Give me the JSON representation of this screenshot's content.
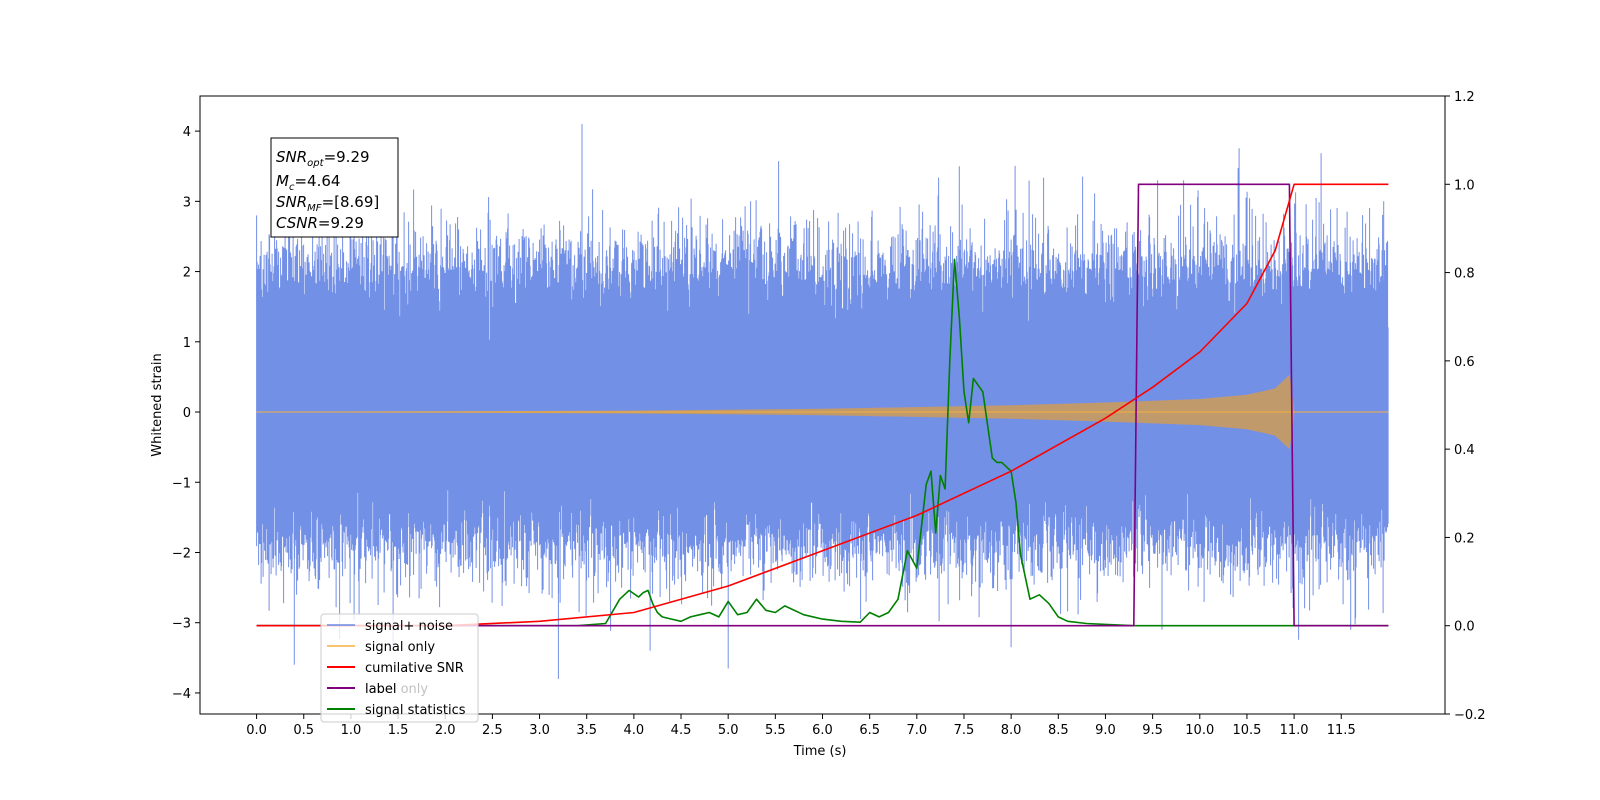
{
  "chart_data": {
    "type": "line",
    "xlabel": "Time (s)",
    "ylabel_left": "Whitened strain",
    "ylabel_right": "",
    "xlim": [
      -0.6,
      12.6
    ],
    "ylim_left": [
      -4.3,
      4.5
    ],
    "ylim_right": [
      -0.2,
      1.2
    ],
    "x_ticks": [
      0.0,
      0.5,
      1.0,
      1.5,
      2.0,
      2.5,
      3.0,
      3.5,
      4.0,
      4.5,
      5.0,
      5.5,
      6.0,
      6.5,
      7.0,
      7.5,
      8.0,
      8.5,
      9.0,
      9.5,
      10.0,
      10.5,
      11.0,
      11.5
    ],
    "x_tick_labels": [
      "0.0",
      "0.5",
      "1.0",
      "1.5",
      "2.0",
      "2.5",
      "3.0",
      "3.5",
      "4.0",
      "4.5",
      "5.0",
      "5.5",
      "6.0",
      "6.5",
      "7.0",
      "7.5",
      "8.0",
      "8.5",
      "9.0",
      "9.5",
      "10.0",
      "10.5",
      "11.0",
      "11.5"
    ],
    "y_left_ticks": [
      -4,
      -3,
      -2,
      -1,
      0,
      1,
      2,
      3,
      4
    ],
    "y_left_tick_labels": [
      "−4",
      "−3",
      "−2",
      "−1",
      "0",
      "1",
      "2",
      "3",
      "4"
    ],
    "y_right_ticks": [
      -0.2,
      0.0,
      0.2,
      0.4,
      0.6,
      0.8,
      1.0,
      1.2
    ],
    "y_right_tick_labels": [
      "−0.2",
      "0.0",
      "0.2",
      "0.4",
      "0.6",
      "0.8",
      "1.0",
      "1.2"
    ],
    "grid": false,
    "legend_position": "lower-left",
    "colors": {
      "signal_noise": "#6b8ae6",
      "signal_only": "#f5b041",
      "signal_only_fill": "#c19a6b",
      "cumulative_snr": "#ff0000",
      "label": "#800080",
      "signal_statistics": "#008000"
    },
    "series": [
      {
        "name": "signal+ noise",
        "axis": "left",
        "description_style": "dense noise band",
        "x_range": [
          0.0,
          12.0
        ],
        "band_envelope": {
          "typical_low": -1.8,
          "typical_high": 2.0,
          "extreme_min": -3.8,
          "extreme_max": 4.1
        }
      },
      {
        "name": "signal only",
        "axis": "left",
        "x_range": [
          0.0,
          12.0
        ],
        "chirp_envelope": {
          "x": [
            0.0,
            2.0,
            4.0,
            6.0,
            8.0,
            9.0,
            10.0,
            10.5,
            10.8,
            10.95,
            11.0,
            12.0
          ],
          "amp": [
            0.0,
            0.005,
            0.015,
            0.04,
            0.09,
            0.13,
            0.18,
            0.24,
            0.33,
            0.52,
            0.0,
            0.0
          ]
        }
      },
      {
        "name": "cumilative SNR",
        "axis": "right",
        "x": [
          0.0,
          2.0,
          3.0,
          4.0,
          5.0,
          6.0,
          7.0,
          8.0,
          9.0,
          9.5,
          10.0,
          10.5,
          10.8,
          11.0,
          11.1,
          12.0
        ],
        "y": [
          0.0,
          0.0,
          0.01,
          0.03,
          0.09,
          0.17,
          0.25,
          0.35,
          0.47,
          0.54,
          0.62,
          0.73,
          0.85,
          1.0,
          1.0,
          1.0
        ]
      },
      {
        "name": "label",
        "axis": "right",
        "x": [
          0.0,
          9.3,
          9.35,
          10.95,
          11.0,
          12.0
        ],
        "y": [
          0.0,
          0.0,
          1.0,
          1.0,
          0.0,
          0.0
        ]
      },
      {
        "name": "label only",
        "axis": "right",
        "x": [],
        "y": []
      },
      {
        "name": "signal statistics",
        "axis": "right",
        "x": [
          0.0,
          3.4,
          3.7,
          3.85,
          3.95,
          4.05,
          4.1,
          4.15,
          4.2,
          4.25,
          4.3,
          4.4,
          4.5,
          4.6,
          4.7,
          4.8,
          4.9,
          5.0,
          5.1,
          5.2,
          5.3,
          5.4,
          5.5,
          5.6,
          5.8,
          6.0,
          6.2,
          6.4,
          6.5,
          6.6,
          6.7,
          6.8,
          6.9,
          7.0,
          7.1,
          7.15,
          7.2,
          7.25,
          7.3,
          7.35,
          7.4,
          7.45,
          7.5,
          7.55,
          7.6,
          7.7,
          7.8,
          7.85,
          7.9,
          8.0,
          8.05,
          8.1,
          8.2,
          8.3,
          8.4,
          8.5,
          8.6,
          8.8,
          9.0,
          9.3,
          9.4,
          12.0
        ],
        "y": [
          0.0,
          0.0,
          0.005,
          0.06,
          0.08,
          0.065,
          0.075,
          0.08,
          0.05,
          0.03,
          0.02,
          0.015,
          0.01,
          0.02,
          0.025,
          0.03,
          0.02,
          0.055,
          0.025,
          0.03,
          0.06,
          0.035,
          0.03,
          0.045,
          0.025,
          0.015,
          0.01,
          0.008,
          0.03,
          0.02,
          0.03,
          0.06,
          0.17,
          0.13,
          0.32,
          0.35,
          0.21,
          0.34,
          0.31,
          0.6,
          0.83,
          0.7,
          0.53,
          0.46,
          0.56,
          0.53,
          0.38,
          0.37,
          0.37,
          0.35,
          0.28,
          0.16,
          0.06,
          0.07,
          0.05,
          0.02,
          0.01,
          0.005,
          0.003,
          0.0,
          0.0,
          0.0
        ]
      }
    ],
    "annotations": {
      "snr_opt_base": "SNR",
      "snr_opt_sub": "opt",
      "snr_opt_val": "=9.29",
      "mc_base": "M",
      "mc_sub": "c",
      "mc_val": "=4.64",
      "snr_mf_base": "SNR",
      "snr_mf_sub": "MF",
      "snr_mf_val": "=[8.69]",
      "csnr_base": "CSNR",
      "csnr_val": "=9.29"
    }
  }
}
